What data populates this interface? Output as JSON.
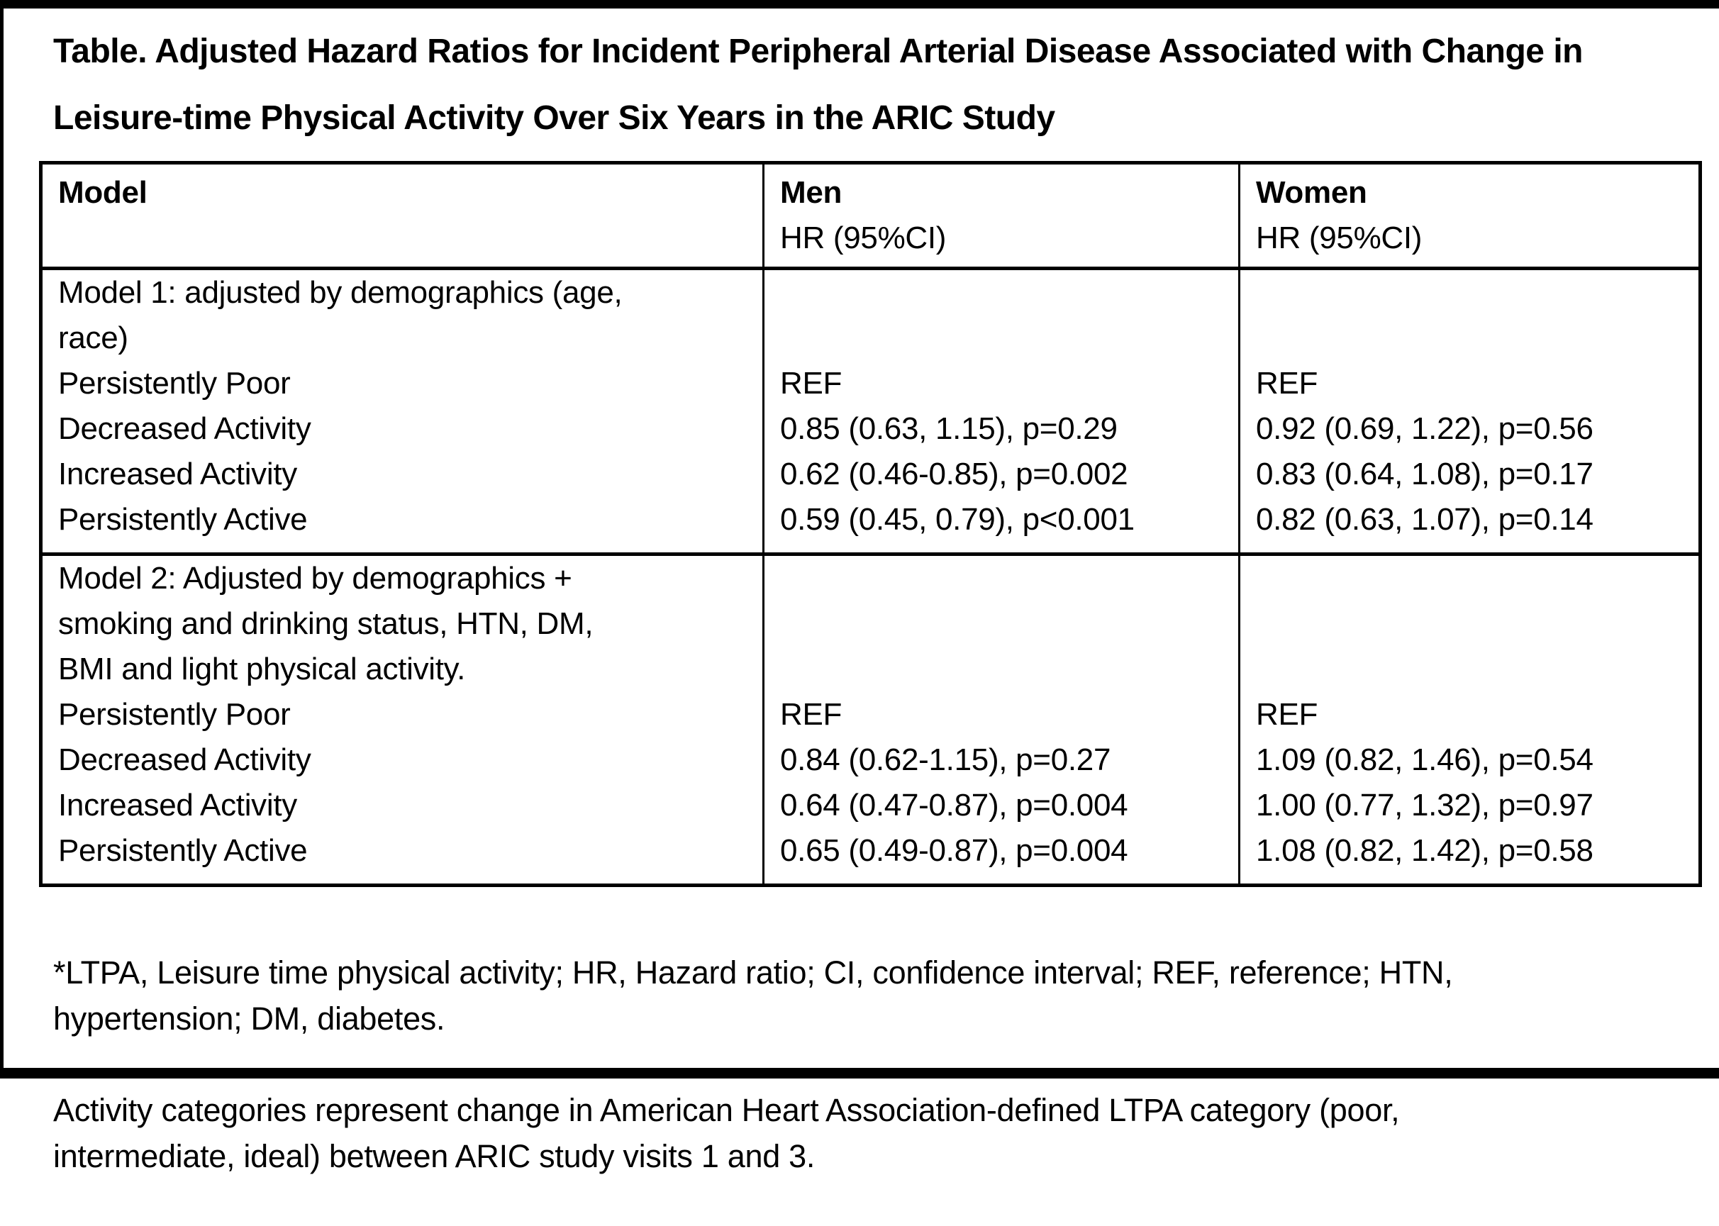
{
  "title": "Table. Adjusted Hazard Ratios for Incident Peripheral Arterial Disease Associated with Change in\nLeisure-time Physical Activity Over Six Years in the ARIC Study",
  "table": {
    "header": {
      "model": "Model",
      "men": "Men",
      "men_sub": "HR (95%CI)",
      "women": "Women",
      "women_sub": "HR (95%CI)"
    },
    "sections": [
      {
        "label": "Model 1: adjusted by demographics (age,\nrace)",
        "rows": [
          {
            "category": "Persistently Poor",
            "men": "REF",
            "men_bold": false,
            "women": "REF",
            "women_bold": false
          },
          {
            "category": "Decreased Activity",
            "men": "0.85 (0.63, 1.15), p=0.29",
            "men_bold": false,
            "women": "0.92 (0.69, 1.22), p=0.56",
            "women_bold": false
          },
          {
            "category": "Increased Activity",
            "men": "0.62 (0.46-0.85), p=0.002",
            "men_bold": true,
            "women": "0.83 (0.64, 1.08), p=0.17",
            "women_bold": false
          },
          {
            "category": "Persistently Active",
            "men": "0.59 (0.45, 0.79), p<0.001",
            "men_bold": true,
            "women": "0.82 (0.63, 1.07), p=0.14",
            "women_bold": false
          }
        ]
      },
      {
        "label": "Model 2: Adjusted by demographics +\nsmoking and drinking status, HTN, DM,\nBMI and light physical activity.",
        "rows": [
          {
            "category": "Persistently Poor",
            "men": "REF",
            "men_bold": false,
            "women": "REF",
            "women_bold": false
          },
          {
            "category": "Decreased Activity",
            "men": "0.84 (0.62-1.15), p=0.27",
            "men_bold": false,
            "women": "1.09 (0.82, 1.46), p=0.54",
            "women_bold": false
          },
          {
            "category": "Increased Activity",
            "men": "0.64 (0.47-0.87), p=0.004",
            "men_bold": true,
            "women": "1.00 (0.77, 1.32), p=0.97",
            "women_bold": false
          },
          {
            "category": "Persistently Active",
            "men": "0.65 (0.49-0.87), p=0.004",
            "men_bold": true,
            "women": "1.08 (0.82, 1.42), p=0.58",
            "women_bold": false
          }
        ]
      }
    ]
  },
  "footnotes": {
    "abbreviations": "*LTPA, Leisure time physical activity; HR, Hazard ratio; CI, confidence interval; REF, reference; HTN,\nhypertension; DM, diabetes.",
    "categories_note": "Activity categories represent change in American Heart Association-defined LTPA category (poor,\nintermediate, ideal) between ARIC study visits 1 and 3."
  }
}
